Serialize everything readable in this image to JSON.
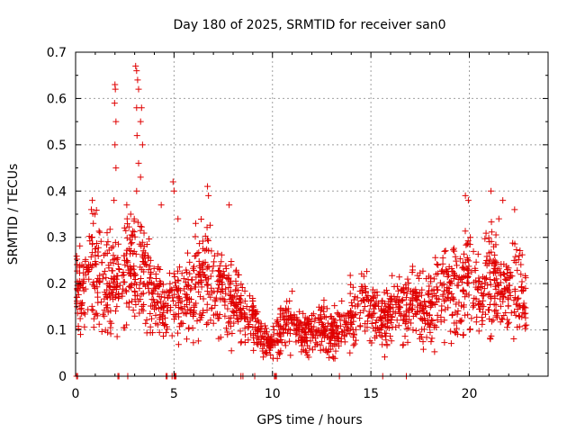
{
  "chart_data": {
    "type": "scatter",
    "title": "Day 180 of 2025, SRMTID for receiver san0",
    "xlabel": "GPS time / hours",
    "ylabel": "SRMTID / TECUs",
    "xlim": [
      0,
      24
    ],
    "ylim": [
      0,
      0.7
    ],
    "xticks": [
      0,
      5,
      10,
      15,
      20
    ],
    "xtick_labels": [
      "0",
      "5",
      "10",
      "15",
      "20"
    ],
    "yticks": [
      0,
      0.1,
      0.2,
      0.3,
      0.4,
      0.5,
      0.6,
      0.7
    ],
    "ytick_labels": [
      "0",
      "0.1",
      "0.2",
      "0.3",
      "0.4",
      "0.5",
      "0.6",
      "0.7"
    ],
    "grid": true,
    "marker": "+",
    "color": "#e00000",
    "trend": [
      [
        0.0,
        0.19
      ],
      [
        0.5,
        0.21
      ],
      [
        1.0,
        0.22
      ],
      [
        1.5,
        0.18
      ],
      [
        2.0,
        0.21
      ],
      [
        2.5,
        0.23
      ],
      [
        3.0,
        0.24
      ],
      [
        3.5,
        0.22
      ],
      [
        4.0,
        0.18
      ],
      [
        4.5,
        0.15
      ],
      [
        5.0,
        0.16
      ],
      [
        5.5,
        0.17
      ],
      [
        6.0,
        0.19
      ],
      [
        6.5,
        0.22
      ],
      [
        7.0,
        0.2
      ],
      [
        7.5,
        0.18
      ],
      [
        8.0,
        0.16
      ],
      [
        8.5,
        0.14
      ],
      [
        9.0,
        0.12
      ],
      [
        9.5,
        0.08
      ],
      [
        10.0,
        0.07
      ],
      [
        10.5,
        0.11
      ],
      [
        11.0,
        0.12
      ],
      [
        11.5,
        0.09
      ],
      [
        12.0,
        0.09
      ],
      [
        12.5,
        0.11
      ],
      [
        13.0,
        0.09
      ],
      [
        13.5,
        0.1
      ],
      [
        14.0,
        0.14
      ],
      [
        14.5,
        0.15
      ],
      [
        15.0,
        0.15
      ],
      [
        15.5,
        0.12
      ],
      [
        16.0,
        0.13
      ],
      [
        16.5,
        0.14
      ],
      [
        17.0,
        0.15
      ],
      [
        17.5,
        0.15
      ],
      [
        18.0,
        0.14
      ],
      [
        18.5,
        0.2
      ],
      [
        19.0,
        0.18
      ],
      [
        19.5,
        0.19
      ],
      [
        20.0,
        0.2
      ],
      [
        20.5,
        0.17
      ],
      [
        21.0,
        0.22
      ],
      [
        21.5,
        0.2
      ],
      [
        22.0,
        0.18
      ],
      [
        22.5,
        0.21
      ],
      [
        22.9,
        0.14
      ]
    ],
    "spikes": [
      [
        2.0,
        0.63
      ],
      [
        2.02,
        0.62
      ],
      [
        1.98,
        0.59
      ],
      [
        2.05,
        0.55
      ],
      [
        2.0,
        0.5
      ],
      [
        2.05,
        0.45
      ],
      [
        3.05,
        0.67
      ],
      [
        3.1,
        0.66
      ],
      [
        3.15,
        0.64
      ],
      [
        3.2,
        0.62
      ],
      [
        3.1,
        0.58
      ],
      [
        3.35,
        0.58
      ],
      [
        3.3,
        0.55
      ],
      [
        3.12,
        0.52
      ],
      [
        3.4,
        0.5
      ],
      [
        3.2,
        0.46
      ],
      [
        3.3,
        0.43
      ],
      [
        3.1,
        0.4
      ],
      [
        1.95,
        0.38
      ],
      [
        0.85,
        0.38
      ],
      [
        0.8,
        0.36
      ],
      [
        2.6,
        0.37
      ],
      [
        4.95,
        0.42
      ],
      [
        5.0,
        0.4
      ],
      [
        6.7,
        0.41
      ],
      [
        6.75,
        0.39
      ],
      [
        7.8,
        0.37
      ],
      [
        19.8,
        0.39
      ],
      [
        19.95,
        0.38
      ],
      [
        21.1,
        0.4
      ],
      [
        21.7,
        0.38
      ],
      [
        22.3,
        0.36
      ],
      [
        20.05,
        0.3
      ],
      [
        21.5,
        0.34
      ],
      [
        0.9,
        0.33
      ],
      [
        4.35,
        0.37
      ],
      [
        5.2,
        0.34
      ],
      [
        6.1,
        0.33
      ],
      [
        1.6,
        0.31
      ],
      [
        2.8,
        0.35
      ]
    ],
    "zero_points": [
      0.05,
      0.1,
      2.15,
      2.2,
      2.65,
      4.6,
      4.65,
      4.9,
      5.0,
      5.05,
      5.1,
      8.4,
      8.5,
      9.1,
      10.1,
      10.15,
      10.2,
      13.4,
      15.6,
      16.8
    ]
  }
}
